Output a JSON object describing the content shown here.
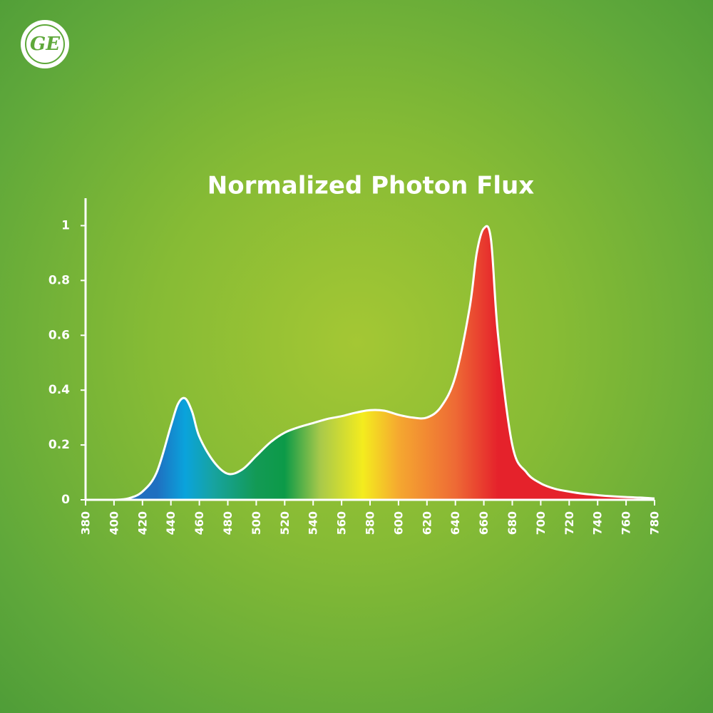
{
  "logo": "GE",
  "chart_data": {
    "type": "area",
    "title": "Normalized Photon Flux",
    "x": [
      380,
      390,
      400,
      410,
      420,
      430,
      440,
      445,
      450,
      455,
      460,
      470,
      480,
      490,
      500,
      510,
      520,
      530,
      540,
      550,
      560,
      570,
      580,
      590,
      600,
      610,
      620,
      630,
      640,
      650,
      655,
      660,
      665,
      670,
      680,
      690,
      700,
      710,
      720,
      730,
      740,
      750,
      760,
      770,
      780
    ],
    "values": [
      0,
      0,
      0,
      0.005,
      0.03,
      0.1,
      0.27,
      0.35,
      0.37,
      0.32,
      0.23,
      0.14,
      0.095,
      0.11,
      0.16,
      0.21,
      0.245,
      0.265,
      0.28,
      0.295,
      0.305,
      0.318,
      0.327,
      0.325,
      0.31,
      0.3,
      0.3,
      0.34,
      0.45,
      0.7,
      0.9,
      0.99,
      0.95,
      0.6,
      0.2,
      0.1,
      0.06,
      0.04,
      0.03,
      0.022,
      0.017,
      0.013,
      0.01,
      0.008,
      0.005
    ],
    "color": "#ffffff",
    "gradient": [
      {
        "x": 430,
        "color": "#1f6fc0"
      },
      {
        "x": 450,
        "color": "#0aa3dc"
      },
      {
        "x": 470,
        "color": "#17a3a0"
      },
      {
        "x": 500,
        "color": "#139a55"
      },
      {
        "x": 520,
        "color": "#0c9a48"
      },
      {
        "x": 545,
        "color": "#a8c94a"
      },
      {
        "x": 575,
        "color": "#f4ec1e"
      },
      {
        "x": 600,
        "color": "#f5a830"
      },
      {
        "x": 640,
        "color": "#ee6a35"
      },
      {
        "x": 670,
        "color": "#e5222b"
      }
    ],
    "xlim": [
      380,
      780
    ],
    "xticks": [
      380,
      400,
      420,
      440,
      460,
      480,
      500,
      520,
      540,
      560,
      580,
      600,
      620,
      640,
      660,
      680,
      700,
      720,
      740,
      760,
      780
    ],
    "ylim": [
      0,
      1.1
    ],
    "yticks": [
      0,
      0.2,
      0.4,
      0.6,
      0.8,
      1
    ]
  }
}
